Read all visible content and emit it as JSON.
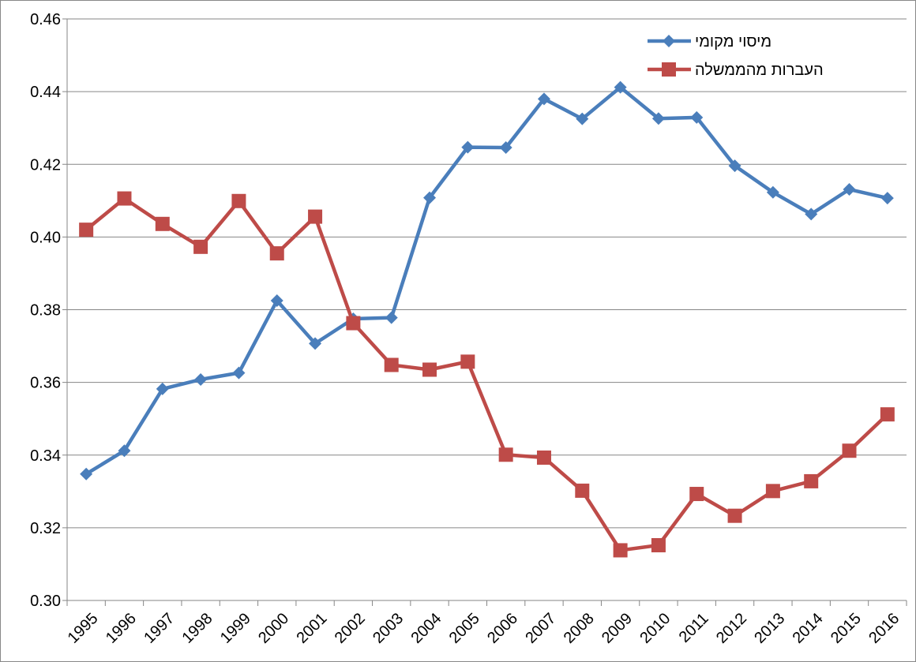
{
  "chart_data": {
    "type": "line",
    "categories": [
      "1995",
      "1996",
      "1997",
      "1998",
      "1999",
      "2000",
      "2001",
      "2002",
      "2003",
      "2004",
      "2005",
      "2006",
      "2007",
      "2008",
      "2009",
      "2010",
      "2011",
      "2012",
      "2013",
      "2014",
      "2015",
      "2016"
    ],
    "series": [
      {
        "name": "מיסוי מקומי",
        "color": "#4a7ebb",
        "marker": "diamond",
        "values": [
          0.3348,
          0.3412,
          0.3582,
          0.3608,
          0.3626,
          0.3825,
          0.3707,
          0.3775,
          0.3778,
          0.4108,
          0.4247,
          0.4246,
          0.438,
          0.4325,
          0.4412,
          0.4326,
          0.4329,
          0.4196,
          0.4123,
          0.4063,
          0.4131,
          0.4107
        ]
      },
      {
        "name": "העברות מהממשלה",
        "color": "#be4b48",
        "marker": "square",
        "values": [
          0.402,
          0.4106,
          0.4036,
          0.3973,
          0.4099,
          0.3955,
          0.4056,
          0.3763,
          0.3648,
          0.3635,
          0.3657,
          0.3401,
          0.3393,
          0.3302,
          0.3138,
          0.3152,
          0.3293,
          0.3233,
          0.3301,
          0.3328,
          0.3412,
          0.3512
        ]
      }
    ],
    "ylim": [
      0.3,
      0.46
    ],
    "yticks": [
      {
        "value": 0.3,
        "label": "0.30"
      },
      {
        "value": 0.32,
        "label": "0.32"
      },
      {
        "value": 0.34,
        "label": "0.34"
      },
      {
        "value": 0.36,
        "label": "0.36"
      },
      {
        "value": 0.38,
        "label": "0.38"
      },
      {
        "value": 0.4,
        "label": "0.40"
      },
      {
        "value": 0.42,
        "label": "0.42"
      },
      {
        "value": 0.44,
        "label": "0.44"
      },
      {
        "value": 0.46,
        "label": "0.46"
      }
    ],
    "grid": true,
    "legend": "top-right"
  }
}
